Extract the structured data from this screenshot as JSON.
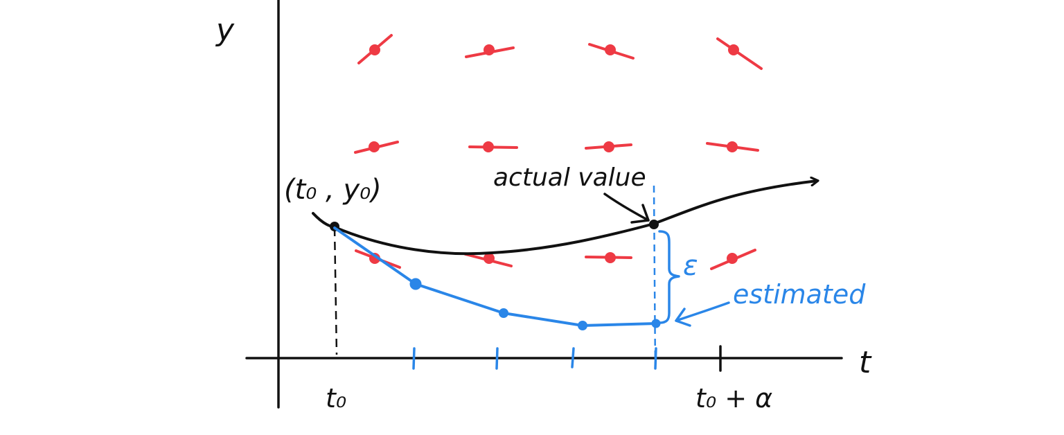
{
  "labels": {
    "y_axis": "y",
    "t_axis": "t",
    "t0_tick": "t₀",
    "t0_plus_alpha_tick": "t₀ + α",
    "initial_point": "(t₀ , y₀)",
    "actual_value": "actual value",
    "estimated": "estimated",
    "epsilon": "ε"
  },
  "colors": {
    "axis": "#111111",
    "actual_curve": "#111111",
    "euler_estimate": "#2a86e8",
    "slope_field": "#ee3a44"
  }
}
